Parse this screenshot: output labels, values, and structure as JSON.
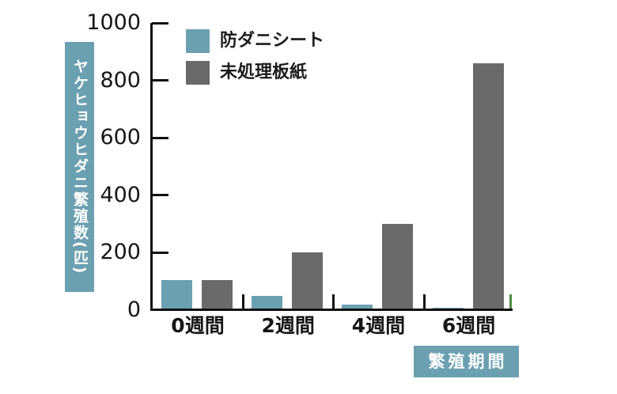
{
  "colors": {
    "teal": "#6BA0B1",
    "gray": "#6A6A6A",
    "axis": "#111111",
    "text": "#161616",
    "label_text": "#ffffff",
    "green_end_tick": "#4F8C3F",
    "background": "#ffffff"
  },
  "chart_data": {
    "type": "bar",
    "title": "",
    "categories": [
      "0週間",
      "2週間",
      "4週間",
      "6週間"
    ],
    "series": [
      {
        "name": "防ダニシート",
        "color_key": "teal",
        "values": [
          105,
          50,
          20,
          8
        ]
      },
      {
        "name": "未処理板紙",
        "color_key": "gray",
        "values": [
          105,
          200,
          300,
          860
        ]
      }
    ],
    "ylabel": "ヤケヒョウヒダニ繁殖数(匹)",
    "xlabel": "繁殖期間",
    "ylim": [
      0,
      1000
    ],
    "yticks": [
      0,
      200,
      400,
      600,
      800,
      1000
    ],
    "grid": false,
    "legend_position": "top-left"
  }
}
